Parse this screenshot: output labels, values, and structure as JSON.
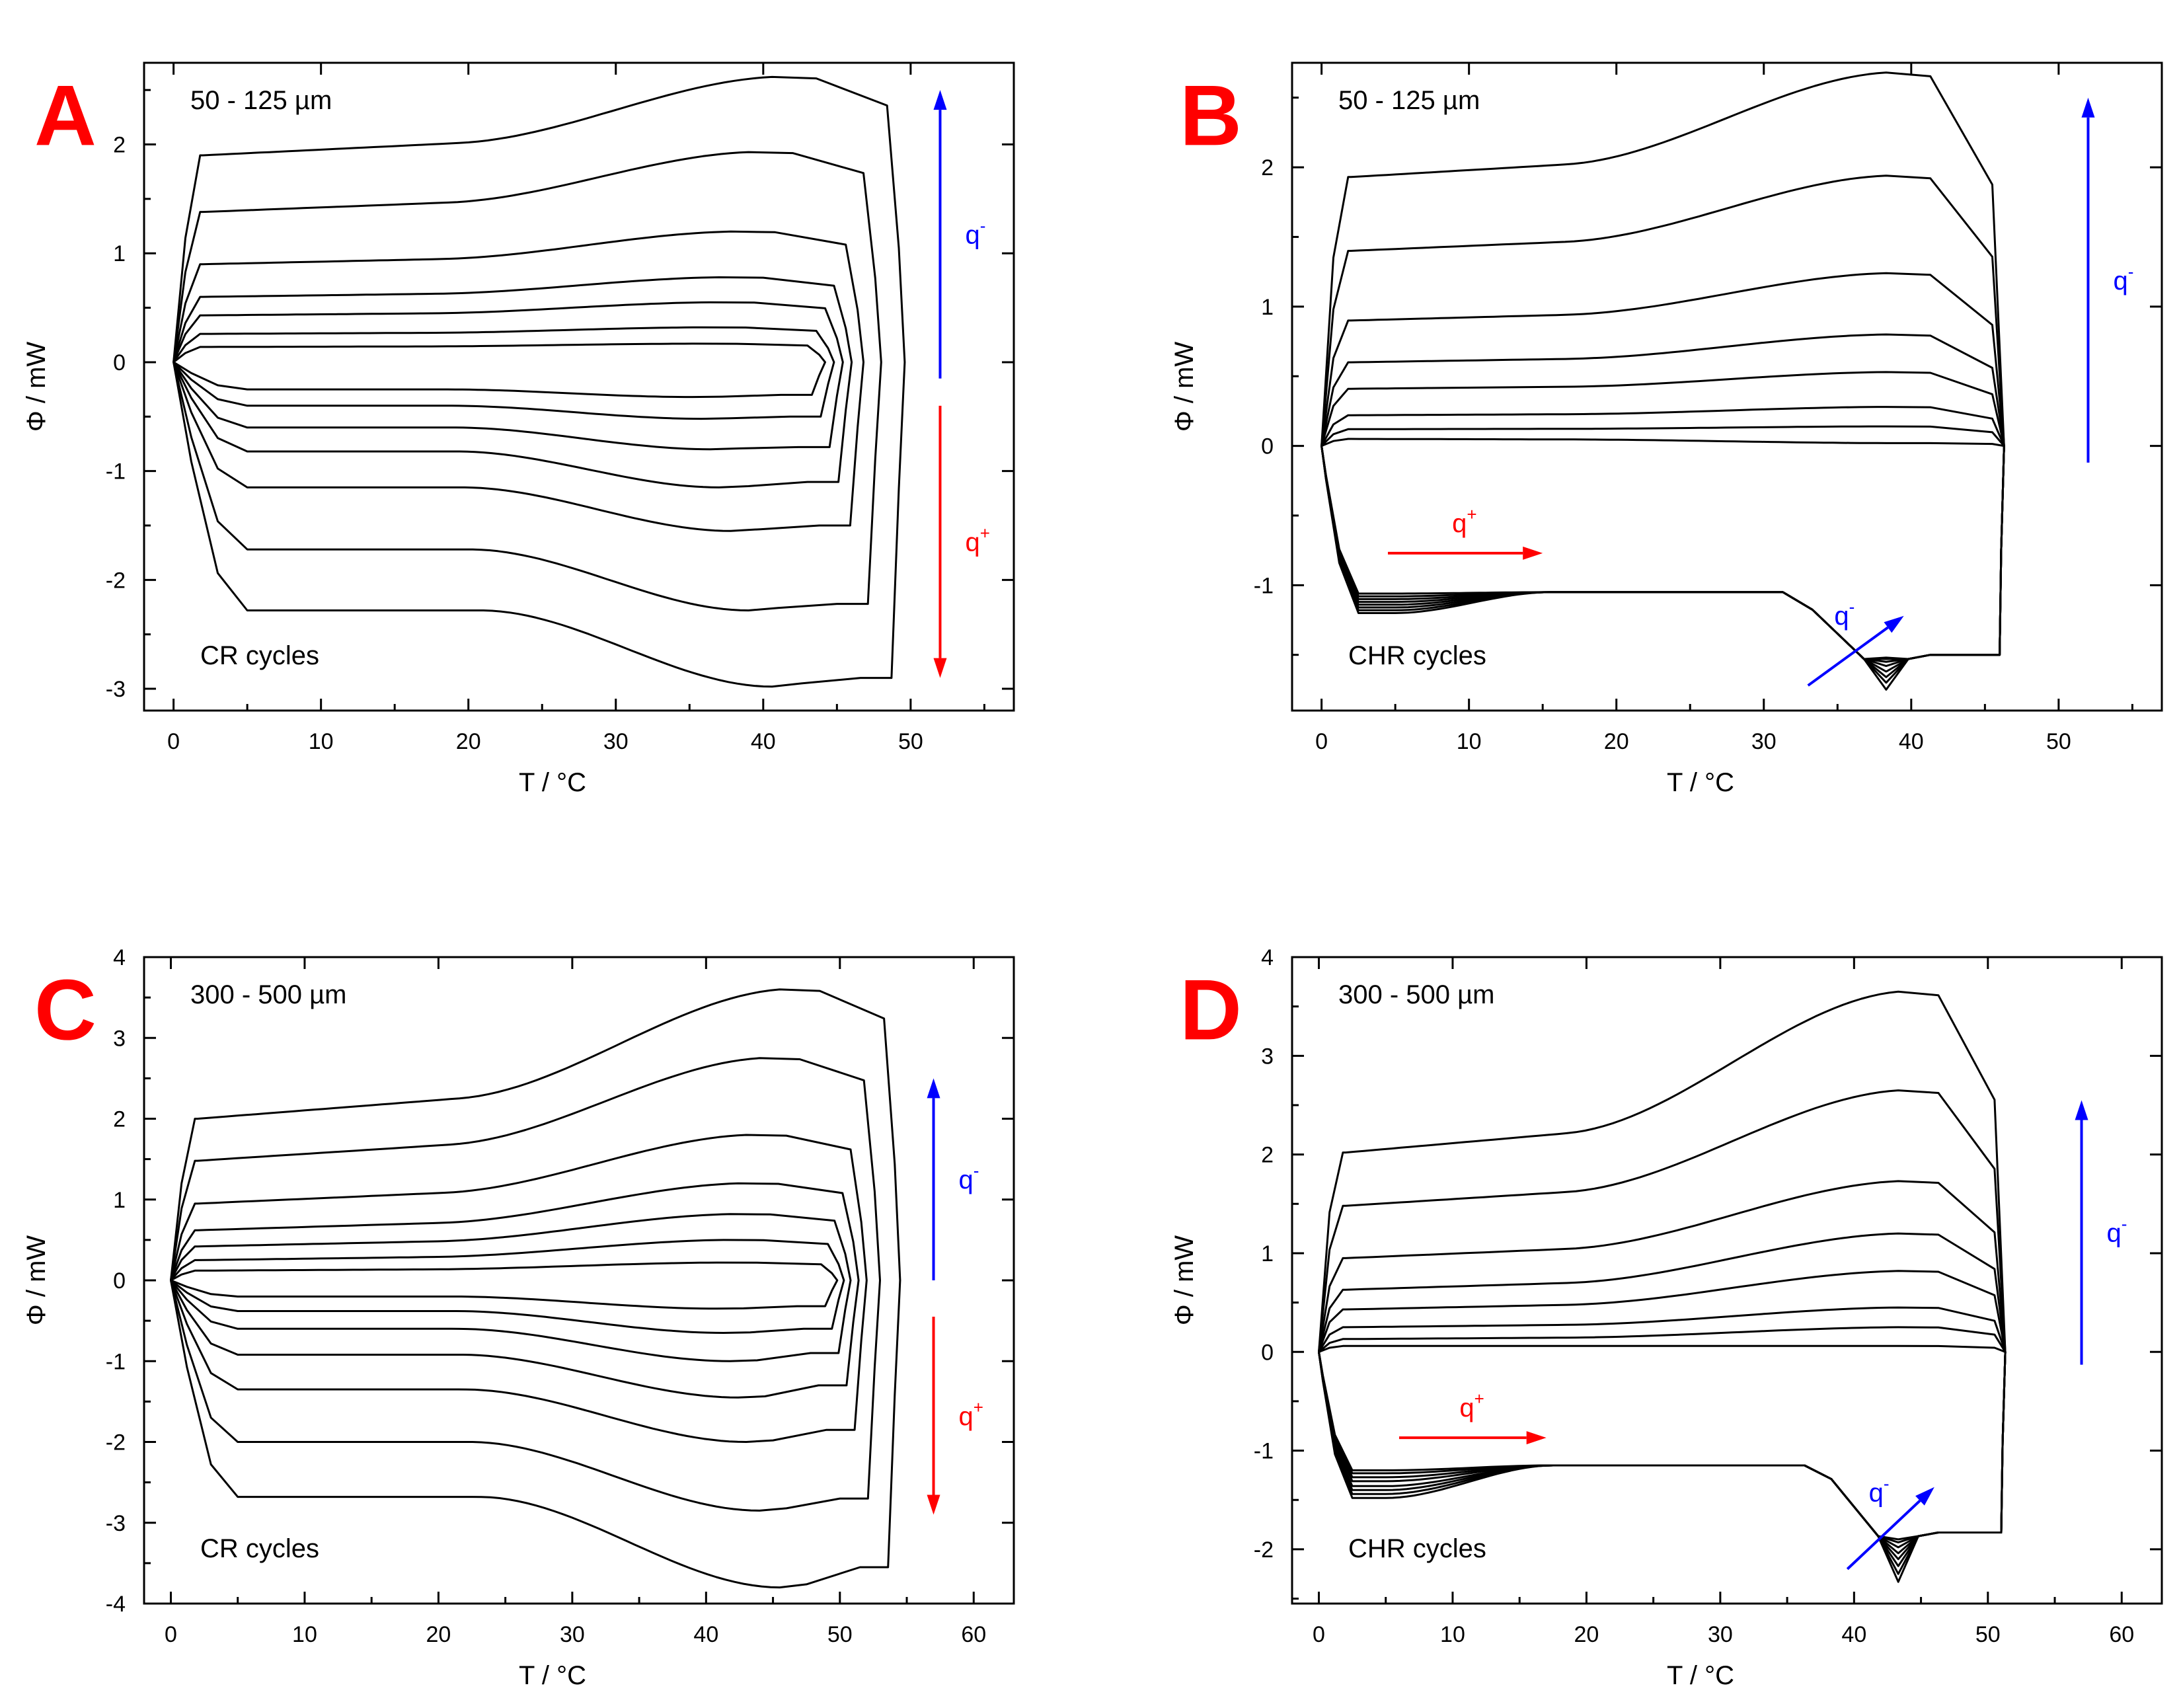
{
  "figure": {
    "panel_letter_color": "#ff0000",
    "curve_color": "#000000",
    "q_minus_color": "#0000ff",
    "q_plus_color": "#ff0000"
  },
  "chart_data": [
    {
      "panel": "A",
      "type": "line",
      "sample_label": "50 - 125 µm",
      "mode_label": "CR cycles",
      "xlabel": "T / °C",
      "ylabel": "Φ / mW",
      "xlim": [
        -2,
        57
      ],
      "ylim": [
        -3.2,
        2.75
      ],
      "xticks": [
        0,
        10,
        20,
        30,
        40,
        50
      ],
      "yticks": [
        -3,
        -2,
        -1,
        0,
        1,
        2
      ],
      "grid": false,
      "cycle_type": "CR",
      "loops": [
        {
          "t_max": 49.6,
          "y_top": 1.9,
          "y_peak_top": 2.62,
          "y_bot": -2.28,
          "y_dip": -2.98,
          "y_end": -2.9
        },
        {
          "t_max": 48.0,
          "y_top": 1.38,
          "y_peak_top": 1.93,
          "y_bot": -1.72,
          "y_dip": -2.28,
          "y_end": -2.22
        },
        {
          "t_max": 46.8,
          "y_top": 0.9,
          "y_peak_top": 1.2,
          "y_bot": -1.15,
          "y_dip": -1.55,
          "y_end": -1.5
        },
        {
          "t_max": 46.0,
          "y_top": 0.6,
          "y_peak_top": 0.78,
          "y_bot": -0.82,
          "y_dip": -1.15,
          "y_end": -1.1
        },
        {
          "t_max": 45.4,
          "y_top": 0.43,
          "y_peak_top": 0.55,
          "y_bot": -0.6,
          "y_dip": -0.8,
          "y_end": -0.78
        },
        {
          "t_max": 44.8,
          "y_top": 0.26,
          "y_peak_top": 0.32,
          "y_bot": -0.4,
          "y_dip": -0.52,
          "y_end": -0.5
        },
        {
          "t_max": 44.2,
          "y_top": 0.14,
          "y_peak_top": 0.17,
          "y_bot": -0.25,
          "y_dip": -0.32,
          "y_end": -0.3
        }
      ],
      "arrows": [
        {
          "label": "q",
          "sup": "-",
          "color": "#0000ff",
          "x0": 52,
          "y0": -0.15,
          "x1": 52,
          "y1": 2.5
        },
        {
          "label": "q",
          "sup": "+",
          "color": "#ff0000",
          "x0": 52,
          "y0": -0.4,
          "x1": 52,
          "y1": -2.9
        }
      ]
    },
    {
      "panel": "B",
      "type": "line",
      "sample_label": "50 - 125 µm",
      "mode_label": "CHR cycles",
      "xlabel": "T / °C",
      "ylabel": "Φ / mW",
      "xlim": [
        -2,
        57
      ],
      "ylim": [
        -1.9,
        2.75
      ],
      "xticks": [
        0,
        10,
        20,
        30,
        40,
        50
      ],
      "yticks": [
        -1,
        0,
        1,
        2
      ],
      "grid": false,
      "cycle_type": "CHR",
      "t_max": 46.3,
      "y_heat_plateau": -1.05,
      "y_end": -1.5,
      "loops": [
        {
          "y_top": 1.93,
          "y_peak_top": 2.68,
          "y_low": -1.2,
          "y_dip": -1.75
        },
        {
          "y_top": 1.4,
          "y_peak_top": 1.94,
          "y_low": -1.18,
          "y_dip": -1.7
        },
        {
          "y_top": 0.9,
          "y_peak_top": 1.24,
          "y_low": -1.16,
          "y_dip": -1.66
        },
        {
          "y_top": 0.6,
          "y_peak_top": 0.8,
          "y_low": -1.14,
          "y_dip": -1.62
        },
        {
          "y_top": 0.41,
          "y_peak_top": 0.53,
          "y_low": -1.12,
          "y_dip": -1.58
        },
        {
          "y_top": 0.22,
          "y_peak_top": 0.28,
          "y_low": -1.1,
          "y_dip": -1.55
        },
        {
          "y_top": 0.12,
          "y_peak_top": 0.14,
          "y_low": -1.08,
          "y_dip": -1.53
        },
        {
          "y_top": 0.05,
          "y_peak_top": 0.02,
          "y_low": -1.06,
          "y_dip": -1.52
        }
      ],
      "arrows": [
        {
          "label": "q",
          "sup": "-",
          "color": "#0000ff",
          "x0": 52,
          "y0": -0.12,
          "x1": 52,
          "y1": 2.5
        },
        {
          "label": "q",
          "sup": "+",
          "color": "#ff0000",
          "x0": 4.5,
          "y0": -0.77,
          "x1": 15,
          "y1": -0.77
        },
        {
          "label": "q",
          "sup": "-",
          "color": "#0000ff",
          "x0": 33,
          "y0": -1.72,
          "x1": 39.5,
          "y1": -1.22
        }
      ]
    },
    {
      "panel": "C",
      "type": "line",
      "sample_label": "300 - 500 µm",
      "mode_label": "CR cycles",
      "xlabel": "T / °C",
      "ylabel": "Φ / mW",
      "xlim": [
        -2,
        63
      ],
      "ylim": [
        -4,
        4
      ],
      "xticks": [
        0,
        10,
        20,
        30,
        40,
        50,
        60
      ],
      "yticks": [
        -4,
        -3,
        -2,
        -1,
        0,
        1,
        2,
        3,
        4
      ],
      "grid": false,
      "cycle_type": "CR",
      "loops": [
        {
          "t_max": 54.5,
          "y_top": 2.0,
          "y_peak_top": 3.6,
          "y_bot": -2.68,
          "y_dip": -3.8,
          "y_end": -3.55
        },
        {
          "t_max": 53.0,
          "y_top": 1.48,
          "y_peak_top": 2.75,
          "y_bot": -2.0,
          "y_dip": -2.85,
          "y_end": -2.7
        },
        {
          "t_max": 52.0,
          "y_top": 0.95,
          "y_peak_top": 1.8,
          "y_bot": -1.35,
          "y_dip": -2.0,
          "y_end": -1.85
        },
        {
          "t_max": 51.4,
          "y_top": 0.62,
          "y_peak_top": 1.2,
          "y_bot": -0.92,
          "y_dip": -1.45,
          "y_end": -1.3
        },
        {
          "t_max": 50.8,
          "y_top": 0.42,
          "y_peak_top": 0.82,
          "y_bot": -0.6,
          "y_dip": -1.0,
          "y_end": -0.9
        },
        {
          "t_max": 50.3,
          "y_top": 0.25,
          "y_peak_top": 0.5,
          "y_bot": -0.38,
          "y_dip": -0.65,
          "y_end": -0.6
        },
        {
          "t_max": 49.8,
          "y_top": 0.12,
          "y_peak_top": 0.22,
          "y_bot": -0.2,
          "y_dip": -0.35,
          "y_end": -0.32
        }
      ],
      "arrows": [
        {
          "label": "q",
          "sup": "-",
          "color": "#0000ff",
          "x0": 57,
          "y0": 0.0,
          "x1": 57,
          "y1": 2.5
        },
        {
          "label": "q",
          "sup": "+",
          "color": "#ff0000",
          "x0": 57,
          "y0": -0.45,
          "x1": 57,
          "y1": -2.9
        }
      ]
    },
    {
      "panel": "D",
      "type": "line",
      "sample_label": "300 - 500 µm",
      "mode_label": "CHR cycles",
      "xlabel": "T / °C",
      "ylabel": "Φ / mW",
      "xlim": [
        -2,
        63
      ],
      "ylim": [
        -2.55,
        4
      ],
      "xticks": [
        0,
        10,
        20,
        30,
        40,
        50,
        60
      ],
      "yticks": [
        -2,
        -1,
        0,
        1,
        2,
        3,
        4
      ],
      "grid": false,
      "cycle_type": "CHR",
      "t_max": 51.3,
      "y_heat_plateau": -1.15,
      "y_end": -1.83,
      "loops": [
        {
          "y_top": 2.02,
          "y_peak_top": 3.65,
          "y_low": -1.48,
          "y_dip": -2.33
        },
        {
          "y_top": 1.48,
          "y_peak_top": 2.65,
          "y_low": -1.44,
          "y_dip": -2.25
        },
        {
          "y_top": 0.95,
          "y_peak_top": 1.73,
          "y_low": -1.4,
          "y_dip": -2.17
        },
        {
          "y_top": 0.63,
          "y_peak_top": 1.2,
          "y_low": -1.36,
          "y_dip": -2.1
        },
        {
          "y_top": 0.43,
          "y_peak_top": 0.82,
          "y_low": -1.31,
          "y_dip": -2.04
        },
        {
          "y_top": 0.25,
          "y_peak_top": 0.45,
          "y_low": -1.27,
          "y_dip": -1.98
        },
        {
          "y_top": 0.13,
          "y_peak_top": 0.25,
          "y_low": -1.23,
          "y_dip": -1.93
        },
        {
          "y_top": 0.06,
          "y_peak_top": 0.06,
          "y_low": -1.2,
          "y_dip": -1.9
        }
      ],
      "arrows": [
        {
          "label": "q",
          "sup": "-",
          "color": "#0000ff",
          "x0": 57,
          "y0": -0.13,
          "x1": 57,
          "y1": 2.55
        },
        {
          "label": "q",
          "sup": "+",
          "color": "#ff0000",
          "x0": 6,
          "y0": -0.87,
          "x1": 17,
          "y1": -0.87
        },
        {
          "label": "q",
          "sup": "-",
          "color": "#0000ff",
          "x0": 39.5,
          "y0": -2.2,
          "x1": 46,
          "y1": -1.37
        }
      ]
    }
  ]
}
